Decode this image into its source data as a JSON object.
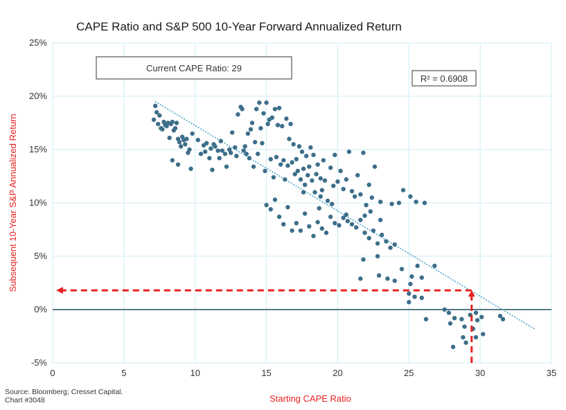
{
  "chart_data": {
    "type": "scatter",
    "title": "CAPE Ratio and S&P 500 10-Year Forward Annualized Return",
    "xlabel": "Starting CAPE Ratio",
    "ylabel": "Subsequent 10-Year S&P Annualized Return",
    "xlim": [
      0,
      35
    ],
    "ylim": [
      -5,
      25
    ],
    "x_ticks": [
      "0",
      "5",
      "10",
      "15",
      "20",
      "25",
      "30",
      "35"
    ],
    "y_ticks": [
      "25%",
      "20%",
      "15%",
      "10%",
      "5%",
      "0%",
      "-5%"
    ],
    "grid": true,
    "annotations": {
      "current_cape": "Current CAPE Ratio: 29",
      "r_squared": "R² = 0.6908",
      "current_cape_value": 29.4,
      "current_return_value": 1.8
    },
    "trendline": {
      "x": [
        7.2,
        33.8
      ],
      "y": [
        19.5,
        -1.8
      ]
    },
    "points": [
      [
        7.1,
        17.8
      ],
      [
        7.2,
        19.1
      ],
      [
        7.3,
        18.5
      ],
      [
        7.4,
        17.4
      ],
      [
        7.5,
        18.2
      ],
      [
        7.6,
        17.0
      ],
      [
        7.7,
        16.9
      ],
      [
        7.8,
        17.6
      ],
      [
        7.9,
        17.3
      ],
      [
        8.0,
        17.2
      ],
      [
        8.1,
        17.5
      ],
      [
        8.2,
        16.1
      ],
      [
        8.3,
        17.4
      ],
      [
        8.4,
        17.6
      ],
      [
        8.5,
        16.8
      ],
      [
        8.6,
        17.0
      ],
      [
        8.7,
        17.5
      ],
      [
        8.8,
        16.0
      ],
      [
        8.9,
        15.7
      ],
      [
        9.0,
        15.3
      ],
      [
        9.1,
        16.2
      ],
      [
        9.2,
        15.9
      ],
      [
        9.3,
        15.5
      ],
      [
        9.4,
        16.0
      ],
      [
        9.5,
        14.7
      ],
      [
        9.6,
        15.0
      ],
      [
        9.7,
        13.2
      ],
      [
        9.8,
        16.5
      ],
      [
        8.4,
        14.0
      ],
      [
        8.8,
        13.6
      ],
      [
        10.2,
        15.9
      ],
      [
        10.4,
        14.6
      ],
      [
        10.6,
        15.4
      ],
      [
        10.7,
        14.8
      ],
      [
        10.8,
        15.6
      ],
      [
        11.0,
        14.2
      ],
      [
        11.1,
        15.1
      ],
      [
        11.2,
        13.1
      ],
      [
        11.3,
        15.5
      ],
      [
        11.4,
        15.3
      ],
      [
        11.6,
        14.9
      ],
      [
        11.7,
        14.2
      ],
      [
        11.8,
        15.8
      ],
      [
        11.9,
        14.9
      ],
      [
        12.1,
        14.6
      ],
      [
        12.2,
        13.4
      ],
      [
        12.4,
        15.0
      ],
      [
        12.5,
        14.7
      ],
      [
        12.6,
        16.6
      ],
      [
        12.8,
        15.2
      ],
      [
        12.9,
        14.4
      ],
      [
        13.0,
        18.3
      ],
      [
        13.2,
        19.0
      ],
      [
        13.3,
        18.8
      ],
      [
        13.4,
        14.9
      ],
      [
        13.5,
        15.3
      ],
      [
        13.6,
        14.6
      ],
      [
        13.7,
        16.5
      ],
      [
        13.8,
        14.2
      ],
      [
        13.9,
        16.9
      ],
      [
        14.0,
        17.5
      ],
      [
        14.1,
        13.4
      ],
      [
        14.2,
        15.7
      ],
      [
        14.3,
        18.8
      ],
      [
        14.4,
        14.6
      ],
      [
        14.5,
        19.4
      ],
      [
        14.6,
        17.0
      ],
      [
        14.7,
        15.6
      ],
      [
        14.8,
        18.4
      ],
      [
        14.9,
        13.0
      ],
      [
        15.0,
        19.4
      ],
      [
        15.1,
        17.4
      ],
      [
        15.2,
        17.8
      ],
      [
        15.3,
        14.1
      ],
      [
        15.4,
        18.0
      ],
      [
        15.5,
        12.4
      ],
      [
        15.6,
        18.8
      ],
      [
        15.7,
        14.3
      ],
      [
        15.8,
        17.3
      ],
      [
        15.9,
        18.9
      ],
      [
        16.0,
        13.6
      ],
      [
        16.1,
        17.2
      ],
      [
        16.2,
        14.0
      ],
      [
        16.3,
        12.2
      ],
      [
        16.4,
        17.9
      ],
      [
        16.5,
        13.5
      ],
      [
        16.6,
        16.0
      ],
      [
        16.7,
        17.4
      ],
      [
        16.8,
        13.8
      ],
      [
        16.9,
        15.5
      ],
      [
        17.0,
        12.7
      ],
      [
        17.1,
        14.1
      ],
      [
        17.2,
        13.0
      ],
      [
        17.3,
        15.3
      ],
      [
        17.4,
        12.2
      ],
      [
        17.5,
        14.8
      ],
      [
        17.6,
        13.2
      ],
      [
        17.7,
        11.7
      ],
      [
        17.8,
        14.4
      ],
      [
        17.9,
        12.6
      ],
      [
        18.0,
        13.4
      ],
      [
        18.1,
        15.2
      ],
      [
        18.2,
        12.1
      ],
      [
        18.3,
        14.5
      ],
      [
        18.4,
        11.0
      ],
      [
        18.5,
        12.7
      ],
      [
        18.6,
        13.6
      ],
      [
        18.7,
        9.5
      ],
      [
        18.8,
        12.3
      ],
      [
        18.9,
        11.2
      ],
      [
        19.0,
        14.0
      ],
      [
        19.1,
        12.1
      ],
      [
        19.3,
        10.2
      ],
      [
        19.5,
        13.3
      ],
      [
        19.7,
        11.6
      ],
      [
        19.8,
        14.5
      ],
      [
        20.0,
        12.0
      ],
      [
        20.2,
        13.0
      ],
      [
        20.4,
        11.3
      ],
      [
        20.6,
        12.2
      ],
      [
        20.8,
        14.8
      ],
      [
        21.0,
        11.1
      ],
      [
        21.2,
        10.6
      ],
      [
        21.4,
        12.6
      ],
      [
        21.6,
        10.8
      ],
      [
        21.8,
        14.7
      ],
      [
        22.0,
        9.8
      ],
      [
        22.2,
        11.7
      ],
      [
        22.4,
        10.5
      ],
      [
        22.6,
        13.4
      ],
      [
        15.0,
        9.8
      ],
      [
        15.3,
        9.4
      ],
      [
        15.6,
        10.3
      ],
      [
        15.9,
        8.7
      ],
      [
        16.2,
        8.0
      ],
      [
        16.5,
        9.6
      ],
      [
        16.8,
        7.4
      ],
      [
        17.1,
        8.1
      ],
      [
        17.4,
        7.4
      ],
      [
        17.7,
        9.0
      ],
      [
        18.0,
        7.8
      ],
      [
        18.3,
        6.9
      ],
      [
        18.6,
        8.2
      ],
      [
        18.9,
        7.6
      ],
      [
        19.2,
        7.2
      ],
      [
        19.5,
        8.7
      ],
      [
        19.8,
        8.1
      ],
      [
        20.1,
        7.9
      ],
      [
        20.4,
        8.6
      ],
      [
        20.7,
        8.3
      ],
      [
        21.0,
        8.0
      ],
      [
        21.3,
        7.7
      ],
      [
        21.6,
        8.4
      ],
      [
        21.9,
        7.2
      ],
      [
        22.2,
        6.7
      ],
      [
        22.5,
        7.4
      ],
      [
        22.8,
        6.2
      ],
      [
        23.1,
        7.0
      ],
      [
        23.4,
        6.4
      ],
      [
        23.7,
        5.8
      ],
      [
        24.0,
        6.1
      ],
      [
        23.0,
        10.1
      ],
      [
        23.8,
        9.9
      ],
      [
        24.3,
        10.0
      ],
      [
        24.6,
        11.2
      ],
      [
        25.1,
        10.6
      ],
      [
        25.5,
        10.1
      ],
      [
        26.1,
        10.0
      ],
      [
        26.8,
        4.1
      ],
      [
        24.5,
        3.8
      ],
      [
        25.2,
        3.1
      ],
      [
        25.6,
        4.1
      ],
      [
        25.9,
        3.0
      ],
      [
        24.0,
        2.7
      ],
      [
        23.5,
        2.9
      ],
      [
        21.6,
        2.9
      ],
      [
        22.8,
        5.0
      ],
      [
        21.8,
        4.7
      ],
      [
        22.9,
        3.2
      ],
      [
        25.1,
        2.4
      ],
      [
        25.0,
        1.5
      ],
      [
        25.4,
        1.2
      ],
      [
        25.9,
        1.1
      ],
      [
        25.0,
        0.7
      ],
      [
        26.2,
        -0.9
      ],
      [
        27.5,
        0.0
      ],
      [
        27.8,
        -0.3
      ],
      [
        28.2,
        -0.8
      ],
      [
        27.9,
        -1.3
      ],
      [
        28.7,
        -0.9
      ],
      [
        28.9,
        -1.6
      ],
      [
        29.3,
        -0.5
      ],
      [
        29.7,
        -0.3
      ],
      [
        29.8,
        -1.0
      ],
      [
        30.1,
        -0.7
      ],
      [
        29.5,
        -1.8
      ],
      [
        29.7,
        -2.6
      ],
      [
        30.2,
        -2.3
      ],
      [
        28.8,
        -2.6
      ],
      [
        29.0,
        -3.1
      ],
      [
        28.1,
        -3.5
      ],
      [
        31.4,
        -0.6
      ],
      [
        31.6,
        -0.9
      ],
      [
        23.0,
        8.4
      ],
      [
        22.3,
        9.2
      ],
      [
        21.9,
        8.8
      ],
      [
        20.6,
        8.9
      ],
      [
        19.6,
        9.9
      ],
      [
        18.8,
        10.6
      ],
      [
        17.6,
        11.0
      ]
    ]
  },
  "footer": {
    "source": "Source: Bloomberg; Cresset Capital.",
    "chart_id": "Chart #3048"
  },
  "colors": {
    "points": "#3d6e8a",
    "trend": "#4aa3c4",
    "grid": "#cdeef6",
    "zero_line": "#1f4f60",
    "highlight": "#e82020"
  }
}
